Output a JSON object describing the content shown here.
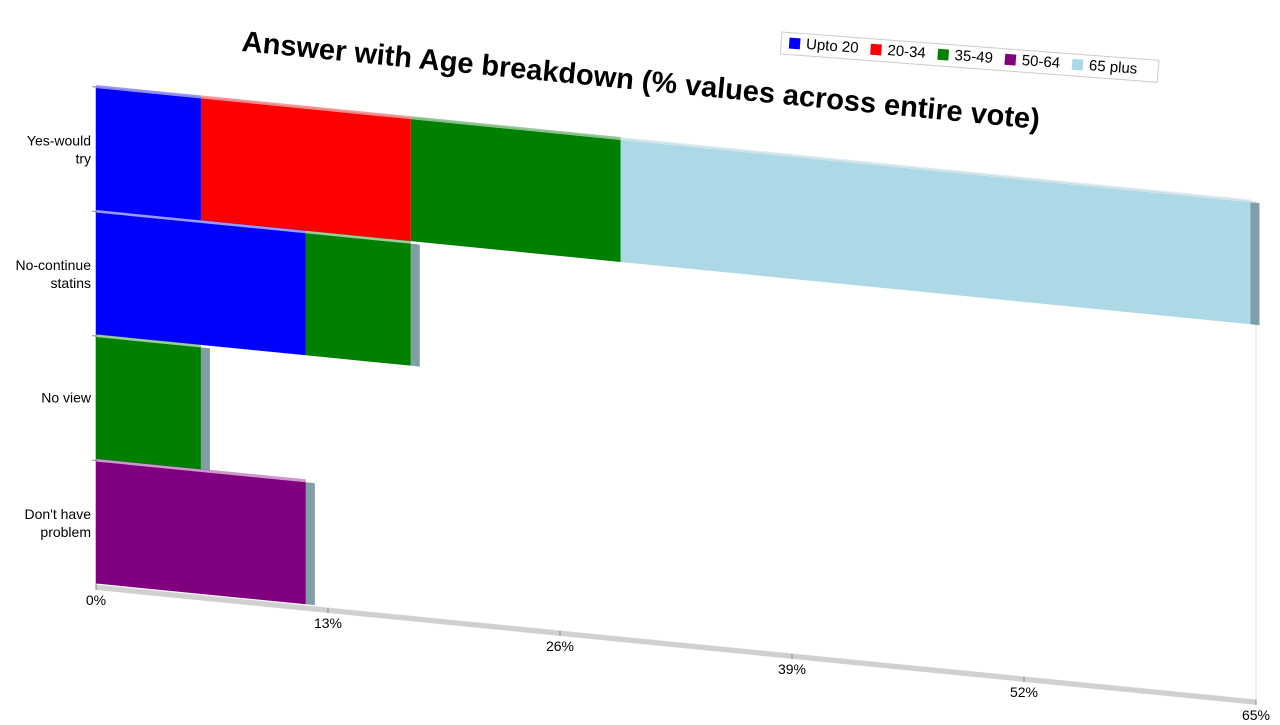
{
  "chart_data": {
    "type": "stacked-bar-horizontal",
    "title": "Answer with Age breakdown (% values across entire vote)",
    "categories": [
      "Yes-would try",
      "No-continue statins",
      "No view",
      "Don't have problem"
    ],
    "series": [
      {
        "name": "Upto 20",
        "color": "#0000ff",
        "values": [
          5.88,
          11.76,
          0,
          0
        ]
      },
      {
        "name": "20-34",
        "color": "#ff0000",
        "values": [
          11.76,
          0,
          0,
          0
        ]
      },
      {
        "name": "35-49",
        "color": "#008000",
        "values": [
          11.76,
          5.88,
          5.88,
          0
        ]
      },
      {
        "name": "50-64",
        "color": "#800080",
        "values": [
          0,
          0,
          0,
          11.76
        ]
      },
      {
        "name": "65 plus",
        "color": "#add8e6",
        "values": [
          35.29,
          0,
          0,
          0
        ]
      }
    ],
    "xlim": [
      0,
      65
    ],
    "xticks": [
      {
        "value": 0,
        "label": "0%"
      },
      {
        "value": 13,
        "label": "13%"
      },
      {
        "value": 26,
        "label": "26%"
      },
      {
        "value": 39,
        "label": "39%"
      },
      {
        "value": 52,
        "label": "52%"
      },
      {
        "value": 65,
        "label": "65%"
      }
    ]
  }
}
